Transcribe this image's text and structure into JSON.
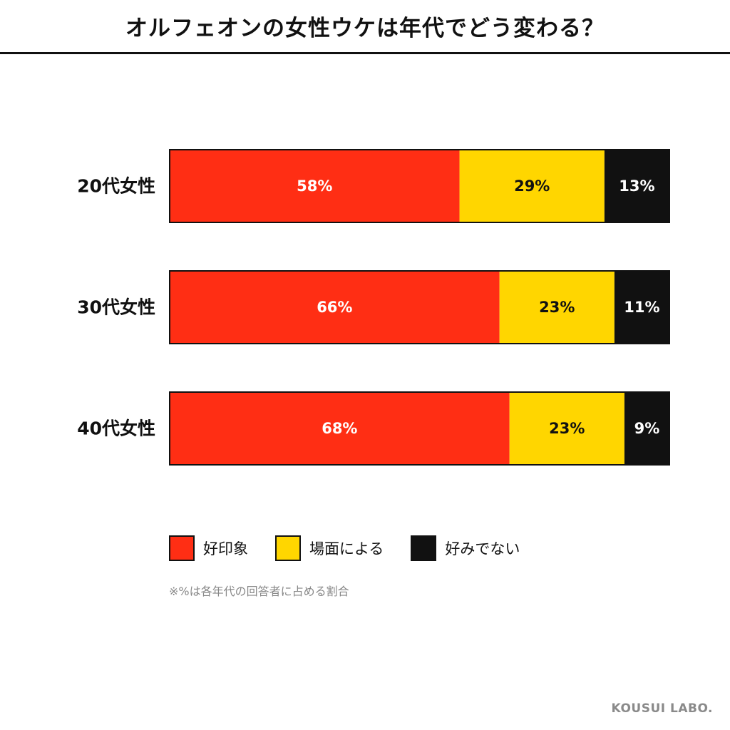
{
  "header": {
    "title": "オルフェオンの女性ウケは年代でどう変わる？"
  },
  "chart_data": {
    "type": "bar",
    "orientation": "horizontal",
    "stacked": true,
    "normalized": true,
    "title": "オルフェオンの女性ウケは年代でどう変わる？",
    "categories": [
      "20代女性",
      "30代女性",
      "40代女性"
    ],
    "series": [
      {
        "name": "好印象",
        "color": "#ff2e14",
        "label_color": "#ffffff",
        "values": [
          58,
          66,
          68
        ],
        "labels": [
          "58%",
          "66%",
          "68%"
        ]
      },
      {
        "name": "場面による",
        "color": "#ffd600",
        "label_color": "#111111",
        "values": [
          29,
          23,
          23
        ],
        "labels": [
          "29%",
          "23%",
          "23%"
        ]
      },
      {
        "name": "好みでない",
        "color": "#111111",
        "label_color": "#ffffff",
        "values": [
          13,
          11,
          9
        ],
        "labels": [
          "13%",
          "11%",
          "9%"
        ]
      }
    ],
    "xlim": [
      0,
      100
    ],
    "grid": false,
    "legend": "bottom"
  },
  "note": "※%は各年代の回答者に占める割合",
  "credit": "KOUSUI LABO."
}
